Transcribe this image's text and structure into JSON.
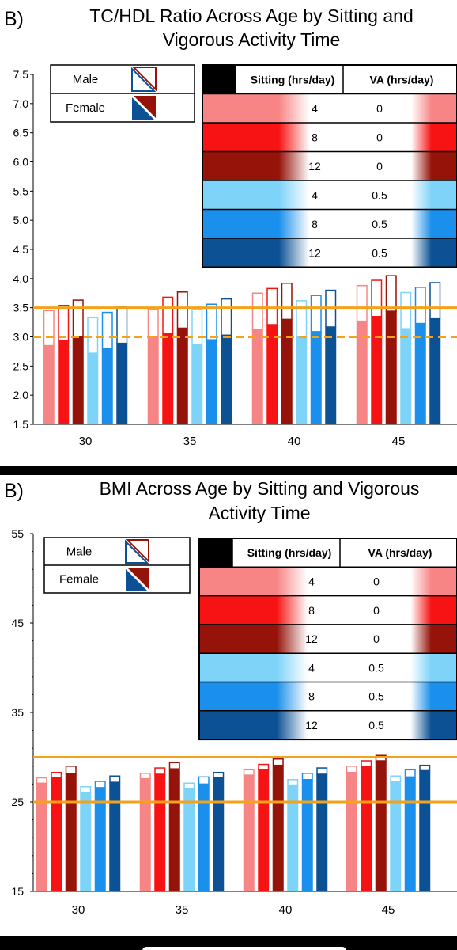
{
  "chart_data": [
    {
      "type": "bar",
      "panel_label": "B)",
      "title": "TC/HDL Ratio Across Age by Sitting and Vigorous Activity Time",
      "title_lines": [
        "TC/HDL Ratio Across Age by Sitting and",
        "Vigorous Activity Time"
      ],
      "categories": [
        "30",
        "35",
        "40",
        "45"
      ],
      "ylim": [
        1.5,
        7.5
      ],
      "yticks": [
        "1.5",
        "2.0",
        "2.5",
        "3.0",
        "3.5",
        "4.0",
        "4.5",
        "5.0",
        "5.5",
        "6.0",
        "6.5",
        "7.0",
        "7.5"
      ],
      "reference_lines": [
        {
          "value": 3.5,
          "style": "solid",
          "color": "#F5A21B"
        },
        {
          "value": 3.0,
          "style": "dashed",
          "color": "#F5A21B"
        }
      ],
      "series": [
        {
          "sitting": "4",
          "va": "0",
          "color": "#F88585",
          "male": [
            3.45,
            3.48,
            3.75,
            3.88
          ],
          "female": [
            2.85,
            3.0,
            3.12,
            3.27
          ]
        },
        {
          "sitting": "8",
          "va": "0",
          "color": "#F71313",
          "male": [
            3.54,
            3.68,
            3.83,
            3.97
          ],
          "female": [
            2.93,
            3.06,
            3.21,
            3.35
          ]
        },
        {
          "sitting": "12",
          "va": "0",
          "color": "#961309",
          "male": [
            3.63,
            3.77,
            3.92,
            4.05
          ],
          "female": [
            3.01,
            3.15,
            3.3,
            3.44
          ]
        },
        {
          "sitting": "4",
          "va": "0.5",
          "color": "#7DD3F8",
          "male": [
            3.33,
            3.47,
            3.62,
            3.76
          ],
          "female": [
            2.72,
            2.87,
            3.0,
            3.14
          ]
        },
        {
          "sitting": "8",
          "va": "0.5",
          "color": "#1A8FEB",
          "male": [
            3.42,
            3.56,
            3.71,
            3.85
          ],
          "female": [
            2.8,
            2.95,
            3.09,
            3.23
          ]
        },
        {
          "sitting": "12",
          "va": "0.5",
          "color": "#0B5194",
          "male": [
            3.51,
            3.65,
            3.8,
            3.93
          ],
          "female": [
            2.89,
            3.03,
            3.17,
            3.31
          ]
        }
      ]
    },
    {
      "type": "bar",
      "panel_label": "B)",
      "title": "BMI Across Age by Sitting and Vigorous Activity Time",
      "title_lines": [
        "BMI Across Age by Sitting and Vigorous",
        "Activity Time"
      ],
      "categories": [
        "30",
        "35",
        "40",
        "45"
      ],
      "ylim": [
        15,
        55
      ],
      "yticks": [
        "15",
        "25",
        "35",
        "45",
        "55"
      ],
      "reference_lines": [
        {
          "value": 30,
          "style": "solid",
          "color": "#F5A21B"
        },
        {
          "value": 25,
          "style": "solid",
          "color": "#F5A21B"
        }
      ],
      "series": [
        {
          "sitting": "4",
          "va": "0",
          "color": "#F88585",
          "male": [
            27.7,
            28.2,
            28.6,
            29.0
          ],
          "female": [
            27.1,
            27.6,
            28.0,
            28.3
          ]
        },
        {
          "sitting": "8",
          "va": "0",
          "color": "#F71313",
          "male": [
            28.3,
            28.8,
            29.2,
            29.6
          ],
          "female": [
            27.7,
            28.1,
            28.6,
            29.0
          ]
        },
        {
          "sitting": "12",
          "va": "0",
          "color": "#961309",
          "male": [
            29.0,
            29.4,
            29.8,
            30.2
          ],
          "female": [
            28.2,
            28.7,
            29.1,
            29.6
          ]
        },
        {
          "sitting": "4",
          "va": "0.5",
          "color": "#7DD3F8",
          "male": [
            26.7,
            27.1,
            27.5,
            27.9
          ],
          "female": [
            26.0,
            26.5,
            26.9,
            27.3
          ]
        },
        {
          "sitting": "8",
          "va": "0.5",
          "color": "#1A8FEB",
          "male": [
            27.3,
            27.8,
            28.2,
            28.6
          ],
          "female": [
            26.6,
            27.0,
            27.5,
            27.8
          ]
        },
        {
          "sitting": "12",
          "va": "0.5",
          "color": "#0B5194",
          "male": [
            27.9,
            28.3,
            28.8,
            29.1
          ],
          "female": [
            27.2,
            27.7,
            28.1,
            28.5
          ]
        }
      ]
    }
  ],
  "legend": {
    "male_label": "Male",
    "female_label": "Female",
    "header_sitting": "Sitting (hrs/day)",
    "header_va": "VA (hrs/day)"
  },
  "colors": {
    "reference_line": "#F5A21B",
    "male_swatch_red": "#961309",
    "male_swatch_blue": "#0B5194"
  }
}
